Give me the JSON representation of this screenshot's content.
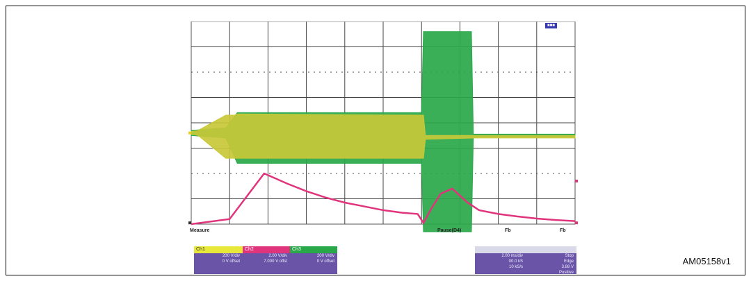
{
  "figure_ref": "AM05158v1",
  "chart_data": {
    "type": "line",
    "title": "",
    "xlabel": "",
    "ylabel": "",
    "grid": true,
    "x_divisions": 10,
    "y_divisions": 8,
    "series": [
      {
        "color": "#c8c838",
        "kind": "band",
        "x": [
          0.0,
          0.18,
          0.9,
          1.12,
          1.2,
          6.05,
          6.1,
          7.4,
          10.0
        ],
        "low": [
          3.55,
          3.5,
          2.6,
          2.6,
          2.6,
          2.6,
          3.35,
          3.4,
          3.4
        ],
        "high": [
          3.65,
          3.7,
          4.3,
          4.3,
          4.35,
          4.3,
          3.5,
          3.5,
          3.5
        ]
      },
      {
        "color": "#2aa84a",
        "kind": "band",
        "x": [
          0.0,
          0.9,
          1.2,
          6.0,
          6.05,
          7.3,
          7.35,
          10.0
        ],
        "low": [
          3.5,
          3.4,
          2.4,
          2.4,
          -0.3,
          -0.3,
          3.45,
          3.45
        ],
        "high": [
          3.7,
          3.8,
          4.4,
          4.4,
          7.6,
          7.6,
          3.55,
          3.55
        ]
      },
      {
        "color": "#e0347c",
        "kind": "line",
        "x": [
          0.0,
          1.0,
          1.9,
          2.5,
          3.0,
          3.5,
          4.0,
          4.5,
          5.0,
          5.5,
          5.9,
          6.05,
          6.25,
          6.5,
          6.8,
          7.2,
          7.5,
          8.0,
          8.5,
          9.0,
          9.5,
          10.0
        ],
        "y": [
          0.0,
          0.2,
          2.0,
          1.6,
          1.3,
          1.05,
          0.85,
          0.7,
          0.55,
          0.45,
          0.4,
          0.05,
          0.6,
          1.2,
          1.4,
          0.85,
          0.55,
          0.4,
          0.3,
          0.22,
          0.16,
          0.12
        ]
      }
    ],
    "annotations": [
      "Measure",
      "Pause(D4)",
      "Fb",
      "Fb"
    ],
    "channel_boxes": [
      {
        "label": "Ch1",
        "lines": [
          "200 V/div",
          "0 V offset"
        ]
      },
      {
        "label": "Ch2",
        "lines": [
          "2.00 V/div",
          "7.000 V offst"
        ]
      },
      {
        "label": "Ch3",
        "lines": [
          "200 V/div",
          "0 V offset"
        ]
      }
    ],
    "timebase_box": {
      "lines_left": [
        "2.00 ms/div",
        "00.0 kS",
        "10 kS/s"
      ],
      "lines_right": [
        "Stop",
        "Edge",
        "3.88 V",
        "Positive"
      ]
    }
  }
}
